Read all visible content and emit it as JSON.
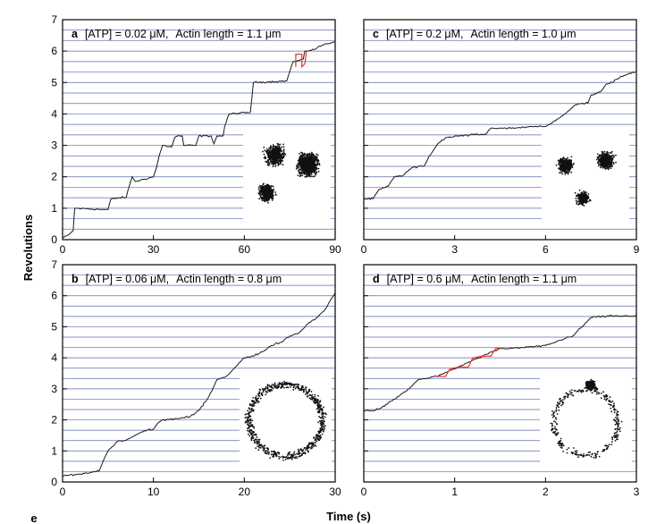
{
  "figure": {
    "y_axis_label": "Revolutions",
    "x_axis_label": "Time (s)",
    "extra_label": "e",
    "colors": {
      "trace": "#1a1a1a",
      "highlight": "#e8332a",
      "grid": "#5a6fb0",
      "dot": "#111111"
    }
  },
  "chart_data": [
    {
      "type": "line",
      "letter": "a",
      "title_atp": "[ATP] = 0.02 μM,",
      "title_actin": "Actin length = 1.1 μm",
      "xlim": [
        0,
        90
      ],
      "ylim": [
        0,
        7
      ],
      "xticks": [
        "0",
        "30",
        "60",
        "90"
      ],
      "yticks": [
        "0",
        "1",
        "2",
        "3",
        "4",
        "5",
        "6",
        "7"
      ],
      "grid": "horizontal lines every 1/3 revolution",
      "trace_points": [
        [
          0,
          0.05
        ],
        [
          2,
          0.15
        ],
        [
          3.5,
          0.3
        ],
        [
          4,
          1.0
        ],
        [
          15,
          0.95
        ],
        [
          16,
          1.3
        ],
        [
          21,
          1.35
        ],
        [
          22,
          1.7
        ],
        [
          23,
          2.0
        ],
        [
          24,
          1.85
        ],
        [
          30,
          2.0
        ],
        [
          31,
          2.3
        ],
        [
          32,
          2.7
        ],
        [
          33,
          3.0
        ],
        [
          36,
          2.95
        ],
        [
          37,
          3.25
        ],
        [
          38,
          3.3
        ],
        [
          39.5,
          3.3
        ],
        [
          40,
          3.0
        ],
        [
          44,
          3.0
        ],
        [
          45,
          3.3
        ],
        [
          49,
          3.3
        ],
        [
          50,
          3.05
        ],
        [
          51,
          3.3
        ],
        [
          53,
          3.3
        ],
        [
          53.5,
          3.6
        ],
        [
          55,
          4.0
        ],
        [
          62,
          4.05
        ],
        [
          63,
          5.0
        ],
        [
          74,
          5.05
        ],
        [
          75,
          5.35
        ],
        [
          76,
          5.65
        ],
        [
          78,
          5.7
        ],
        [
          79.5,
          5.75
        ],
        [
          80,
          6.0
        ],
        [
          83,
          6.05
        ],
        [
          86,
          6.2
        ],
        [
          90,
          6.3
        ]
      ],
      "highlight_points": [
        [
          77,
          5.5
        ],
        [
          77,
          5.9
        ],
        [
          79,
          5.9
        ],
        [
          79,
          5.5
        ],
        [
          80,
          5.6
        ],
        [
          80.5,
          6.0
        ]
      ],
      "inset_clusters": [
        {
          "cx": 0.36,
          "cy": 0.32,
          "r": 0.26,
          "n": 500
        },
        {
          "cx": 0.74,
          "cy": 0.42,
          "r": 0.28,
          "n": 900
        },
        {
          "cx": 0.27,
          "cy": 0.72,
          "r": 0.22,
          "n": 450
        }
      ]
    },
    {
      "type": "line",
      "letter": "c",
      "title_atp": "[ATP] = 0.2 μM,",
      "title_actin": "Actin length = 1.0 μm",
      "xlim": [
        0,
        9
      ],
      "ylim": [
        0,
        7
      ],
      "xticks": [
        "0",
        "3",
        "6",
        "9"
      ],
      "yticks": [],
      "grid": "horizontal lines every 1/3 revolution",
      "trace_points": [
        [
          0,
          1.3
        ],
        [
          0.3,
          1.3
        ],
        [
          0.5,
          1.6
        ],
        [
          0.8,
          1.7
        ],
        [
          1.0,
          2.0
        ],
        [
          1.3,
          2.05
        ],
        [
          1.6,
          2.3
        ],
        [
          2.0,
          2.35
        ],
        [
          2.2,
          2.7
        ],
        [
          2.4,
          3.0
        ],
        [
          2.7,
          3.25
        ],
        [
          3.2,
          3.3
        ],
        [
          3.6,
          3.35
        ],
        [
          4.0,
          3.35
        ],
        [
          4.2,
          3.55
        ],
        [
          5.0,
          3.55
        ],
        [
          5.5,
          3.6
        ],
        [
          6.0,
          3.6
        ],
        [
          6.2,
          3.7
        ],
        [
          6.5,
          3.9
        ],
        [
          6.7,
          4.05
        ],
        [
          7.0,
          4.3
        ],
        [
          7.4,
          4.35
        ],
        [
          7.5,
          4.6
        ],
        [
          7.8,
          4.7
        ],
        [
          8.0,
          4.95
        ],
        [
          8.2,
          5.0
        ],
        [
          8.5,
          5.2
        ],
        [
          9,
          5.35
        ]
      ],
      "highlight_points": [],
      "inset_clusters": [
        {
          "cx": 0.27,
          "cy": 0.35,
          "r": 0.2,
          "n": 350
        },
        {
          "cx": 0.73,
          "cy": 0.3,
          "r": 0.22,
          "n": 450
        },
        {
          "cx": 0.47,
          "cy": 0.72,
          "r": 0.18,
          "n": 250
        }
      ]
    },
    {
      "type": "line",
      "letter": "b",
      "title_atp": "[ATP] = 0.06 μM,",
      "title_actin": "Actin length = 0.8 μm",
      "xlim": [
        0,
        30
      ],
      "ylim": [
        0,
        7
      ],
      "xticks": [
        "0",
        "10",
        "20",
        "30"
      ],
      "yticks": [
        "0",
        "1",
        "2",
        "3",
        "4",
        "5",
        "6",
        "7"
      ],
      "grid": "horizontal lines every 1/3 revolution",
      "trace_points": [
        [
          0,
          0.2
        ],
        [
          2,
          0.25
        ],
        [
          3,
          0.3
        ],
        [
          4,
          0.35
        ],
        [
          4.5,
          0.7
        ],
        [
          5,
          1.0
        ],
        [
          6,
          1.3
        ],
        [
          7,
          1.35
        ],
        [
          8,
          1.5
        ],
        [
          9,
          1.65
        ],
        [
          10,
          1.7
        ],
        [
          10.5,
          1.9
        ],
        [
          11,
          2.0
        ],
        [
          13,
          2.05
        ],
        [
          14,
          2.1
        ],
        [
          15,
          2.3
        ],
        [
          16,
          2.7
        ],
        [
          17,
          3.3
        ],
        [
          18,
          3.4
        ],
        [
          19,
          3.7
        ],
        [
          20,
          4.0
        ],
        [
          21,
          4.05
        ],
        [
          22,
          4.2
        ],
        [
          23,
          4.4
        ],
        [
          24,
          4.5
        ],
        [
          25,
          4.7
        ],
        [
          26,
          4.8
        ],
        [
          27,
          5.1
        ],
        [
          28,
          5.3
        ],
        [
          29,
          5.6
        ],
        [
          30,
          6.1
        ]
      ],
      "highlight_points": [],
      "inset_clusters": [
        {
          "ring": true,
          "cx": 0.5,
          "cy": 0.5,
          "r": 0.4,
          "n": 700
        }
      ]
    },
    {
      "type": "line",
      "letter": "d",
      "title_atp": "[ATP] = 0.6 μM,",
      "title_actin": "Actin length = 1.1 μm",
      "xlim": [
        0,
        3
      ],
      "ylim": [
        0,
        7
      ],
      "xticks": [
        "0",
        "1",
        "2",
        "3"
      ],
      "yticks": [],
      "grid": "horizontal lines every 1/3 revolution",
      "trace_points": [
        [
          0,
          2.3
        ],
        [
          0.1,
          2.3
        ],
        [
          0.2,
          2.4
        ],
        [
          0.3,
          2.6
        ],
        [
          0.4,
          2.8
        ],
        [
          0.5,
          3.0
        ],
        [
          0.6,
          3.3
        ],
        [
          0.7,
          3.35
        ],
        [
          0.8,
          3.4
        ],
        [
          1.5,
          4.3
        ],
        [
          1.6,
          4.3
        ],
        [
          1.8,
          4.35
        ],
        [
          2.0,
          4.4
        ],
        [
          2.1,
          4.5
        ],
        [
          2.2,
          4.6
        ],
        [
          2.3,
          4.7
        ],
        [
          2.4,
          5.0
        ],
        [
          2.5,
          5.3
        ],
        [
          2.7,
          5.35
        ],
        [
          2.9,
          5.35
        ],
        [
          3.0,
          5.35
        ]
      ],
      "highlight_points": [
        [
          0.8,
          3.4
        ],
        [
          0.9,
          3.4
        ],
        [
          0.95,
          3.65
        ],
        [
          1.05,
          3.7
        ],
        [
          1.15,
          3.7
        ],
        [
          1.2,
          4.0
        ],
        [
          1.3,
          4.05
        ],
        [
          1.4,
          4.05
        ],
        [
          1.45,
          4.3
        ],
        [
          1.5,
          4.3
        ]
      ],
      "inset_clusters": [
        {
          "ring": true,
          "cx": 0.5,
          "cy": 0.55,
          "r": 0.35,
          "n": 300
        },
        {
          "cx": 0.55,
          "cy": 0.15,
          "r": 0.12,
          "n": 350
        }
      ]
    }
  ]
}
